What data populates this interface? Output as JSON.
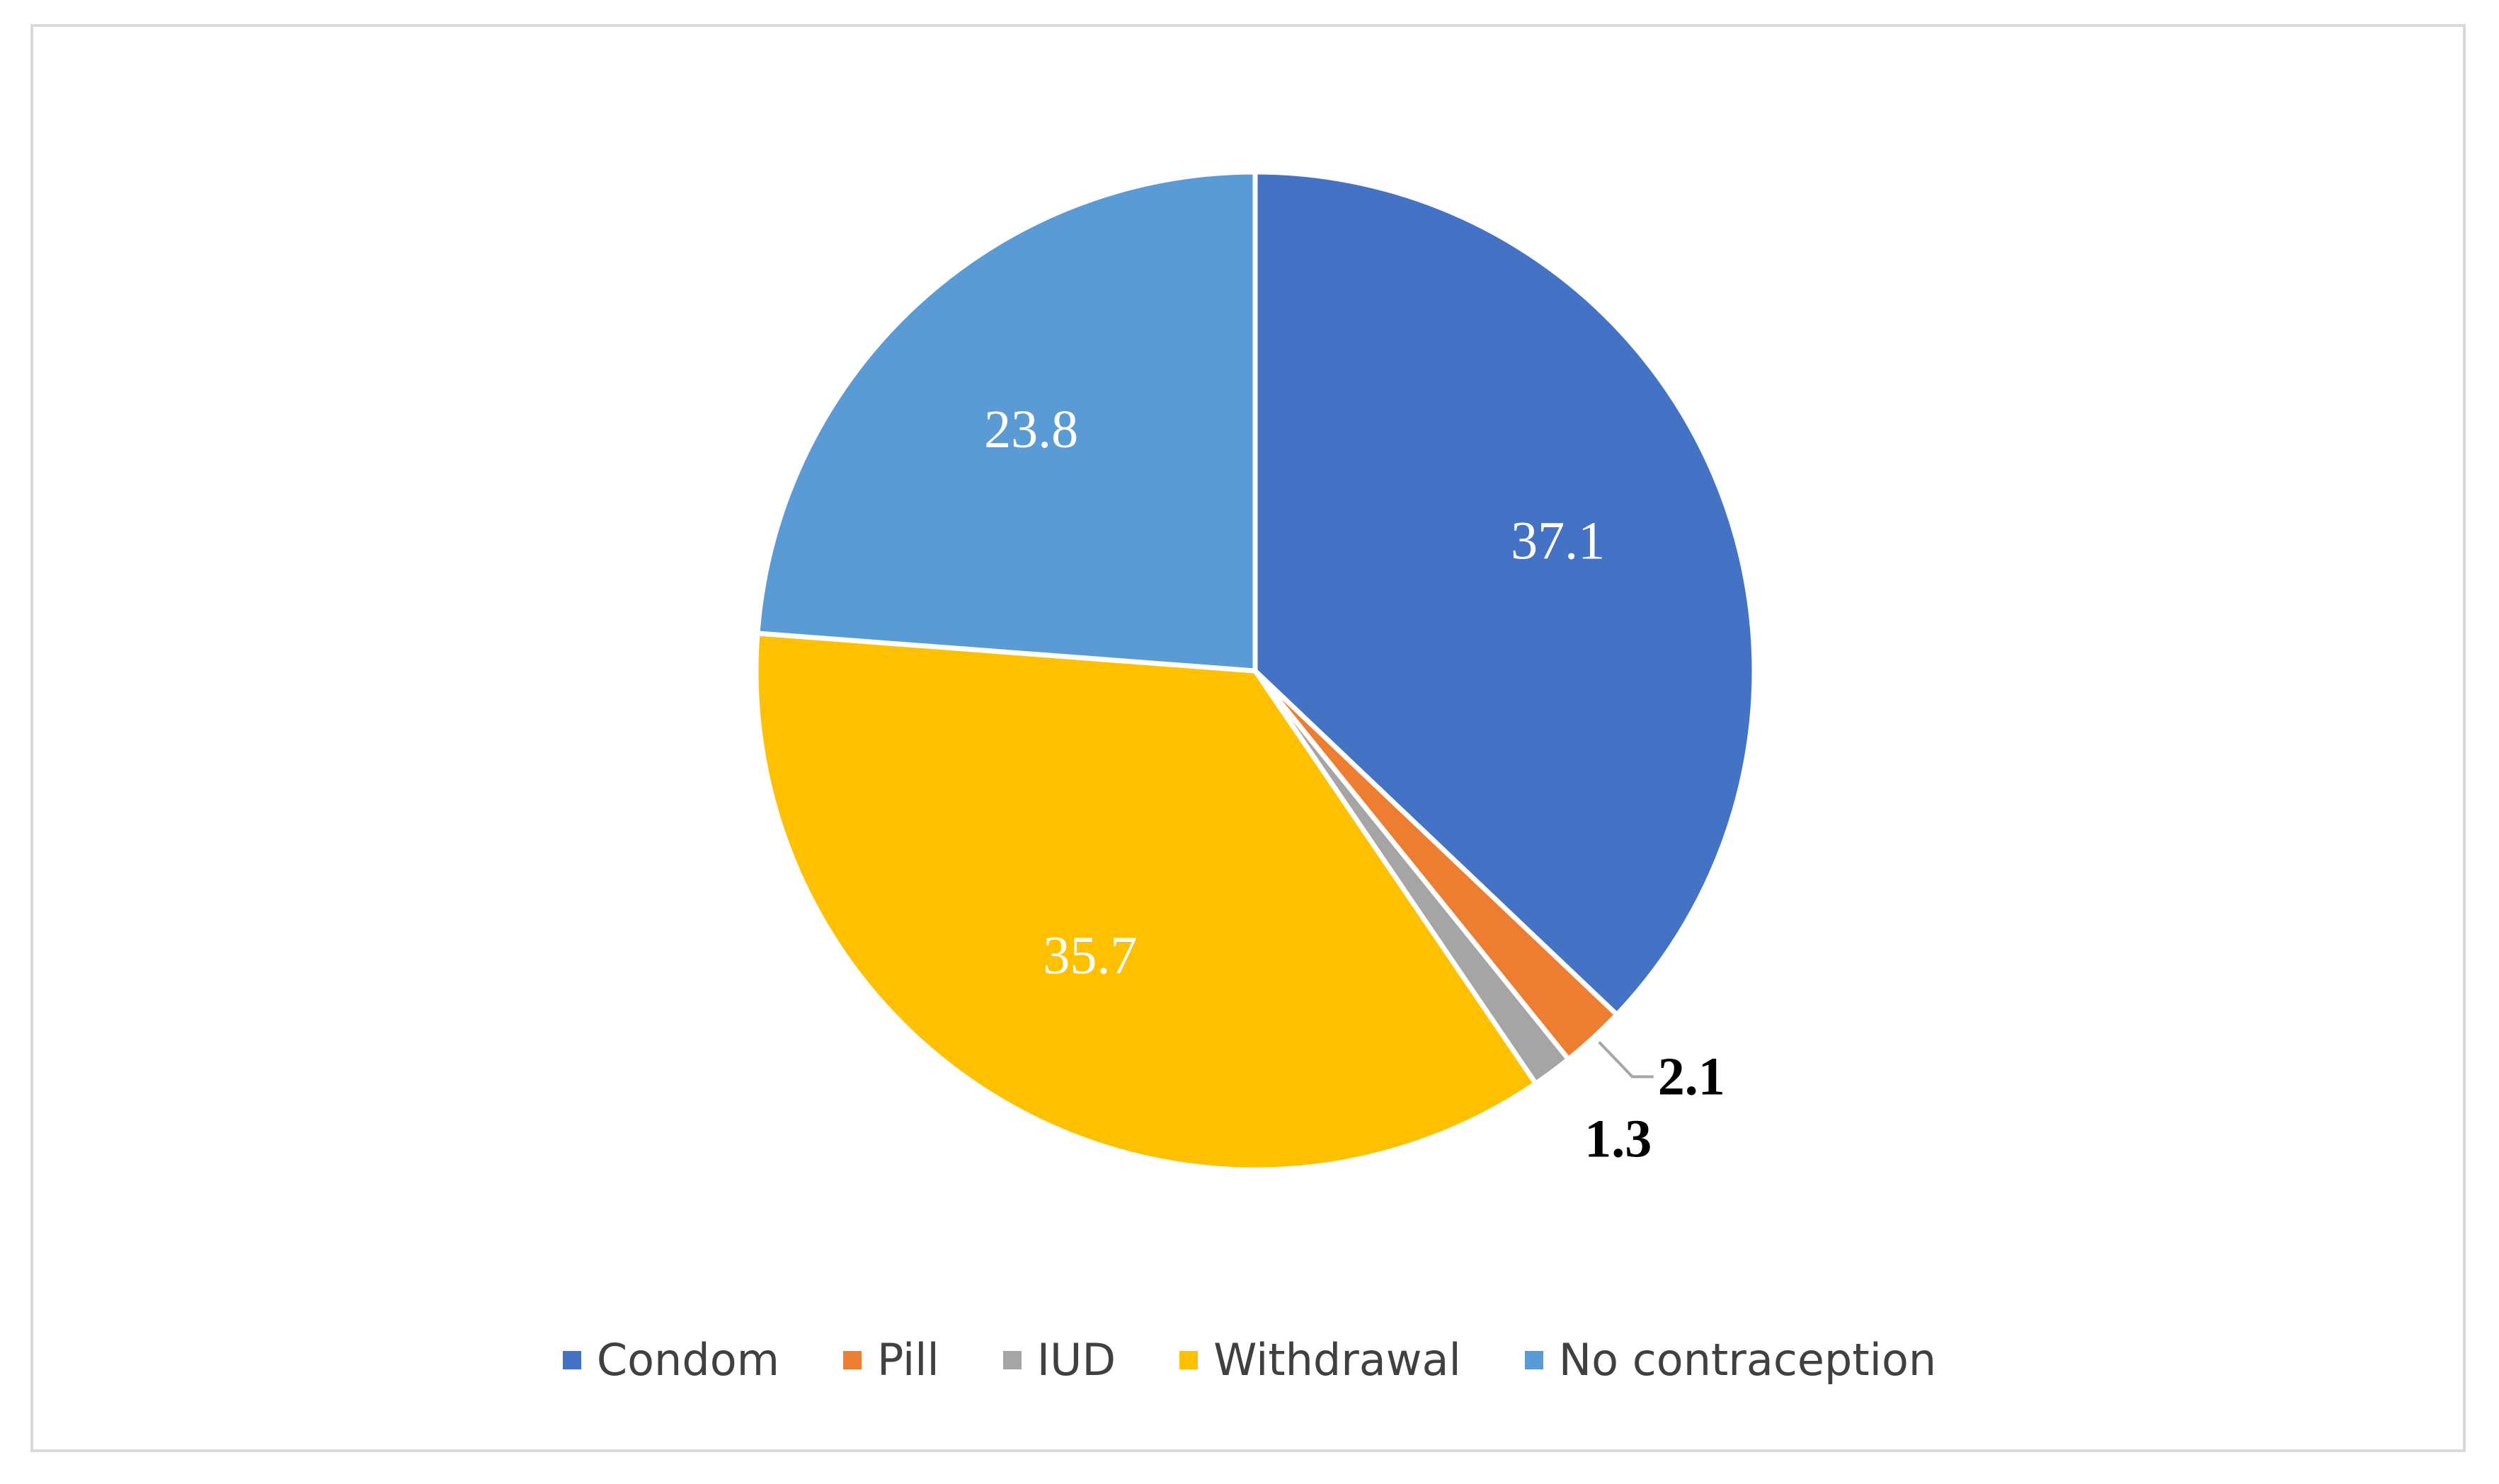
{
  "chart_data": {
    "type": "pie",
    "categories": [
      "Condom",
      "Pill",
      "IUD",
      "Withdrawal",
      "No contraception"
    ],
    "values": [
      37.1,
      2.1,
      1.3,
      35.7,
      23.8
    ],
    "labels": [
      "37.1",
      "2.1",
      "1.3",
      "35.7",
      "23.8"
    ],
    "colors": [
      "#4472c4",
      "#ed7d31",
      "#a5a5a5",
      "#ffc000",
      "#5b9bd5"
    ],
    "title": "",
    "legend_position": "bottom"
  }
}
